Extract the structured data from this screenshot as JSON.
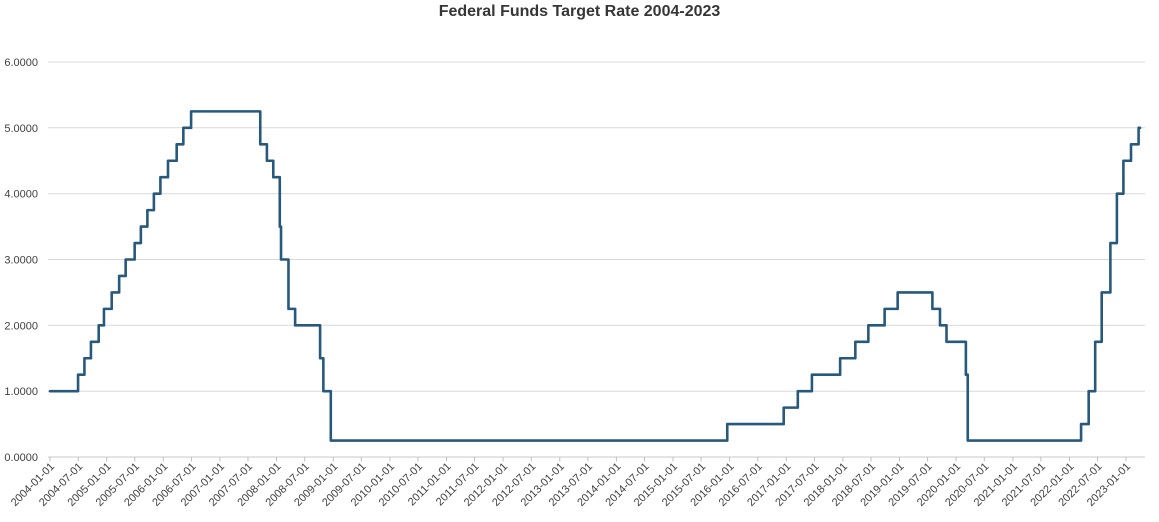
{
  "chart_data": {
    "type": "line",
    "title": "Federal Funds Target Rate 2004-2023",
    "xlabel": "",
    "ylabel": "",
    "ylim": [
      0,
      6
    ],
    "x_range": [
      "2004-01-01",
      "2023-04-01"
    ],
    "grid": "horizontal-only",
    "legend_position": "none",
    "line_color": "#27597C",
    "gridline_color": "#D9D9D9",
    "axis_line_color": "#C8C8C8",
    "tick_mark_color": "#BFBFBF",
    "tick_label_color": "#404040",
    "title_color": "#363636",
    "y_tick_labels": [
      "0.0000",
      "1.0000",
      "2.0000",
      "3.0000",
      "4.0000",
      "5.0000",
      "6.0000"
    ],
    "y_tick_values": [
      0,
      1,
      2,
      3,
      4,
      5,
      6
    ],
    "x_tick_labels": [
      "2004-01-01",
      "2004-07-01",
      "2005-01-01",
      "2005-07-01",
      "2006-01-01",
      "2006-07-01",
      "2007-01-01",
      "2007-07-01",
      "2008-01-01",
      "2008-07-01",
      "2009-01-01",
      "2009-07-01",
      "2010-01-01",
      "2010-07-01",
      "2011-01-01",
      "2011-07-01",
      "2012-01-01",
      "2012-07-01",
      "2013-01-01",
      "2013-07-01",
      "2014-01-01",
      "2014-07-01",
      "2015-01-01",
      "2015-07-01",
      "2016-01-01",
      "2016-07-01",
      "2017-01-01",
      "2017-07-01",
      "2018-01-01",
      "2018-07-01",
      "2019-01-01",
      "2019-07-01",
      "2020-01-01",
      "2020-07-01",
      "2021-01-01",
      "2021-07-01",
      "2022-01-01",
      "2022-07-01",
      "2023-01-01"
    ],
    "series": [
      {
        "name": "Federal Funds Target Rate",
        "step_mode": "post",
        "points": [
          [
            "2004-01-01",
            1.0
          ],
          [
            "2004-06-30",
            1.25
          ],
          [
            "2004-08-10",
            1.5
          ],
          [
            "2004-09-21",
            1.75
          ],
          [
            "2004-11-10",
            2.0
          ],
          [
            "2004-12-14",
            2.25
          ],
          [
            "2005-02-02",
            2.5
          ],
          [
            "2005-03-22",
            2.75
          ],
          [
            "2005-05-03",
            3.0
          ],
          [
            "2005-06-30",
            3.25
          ],
          [
            "2005-08-09",
            3.5
          ],
          [
            "2005-09-20",
            3.75
          ],
          [
            "2005-11-01",
            4.0
          ],
          [
            "2005-12-13",
            4.25
          ],
          [
            "2006-01-31",
            4.5
          ],
          [
            "2006-03-28",
            4.75
          ],
          [
            "2006-05-10",
            5.0
          ],
          [
            "2006-06-29",
            5.25
          ],
          [
            "2007-09-18",
            4.75
          ],
          [
            "2007-10-31",
            4.5
          ],
          [
            "2007-12-11",
            4.25
          ],
          [
            "2008-01-22",
            3.5
          ],
          [
            "2008-01-30",
            3.0
          ],
          [
            "2008-03-18",
            2.25
          ],
          [
            "2008-04-30",
            2.0
          ],
          [
            "2008-10-08",
            1.5
          ],
          [
            "2008-10-29",
            1.0
          ],
          [
            "2008-12-16",
            0.25
          ],
          [
            "2015-12-17",
            0.5
          ],
          [
            "2016-12-15",
            0.75
          ],
          [
            "2017-03-16",
            1.0
          ],
          [
            "2017-06-15",
            1.25
          ],
          [
            "2017-12-14",
            1.5
          ],
          [
            "2018-03-22",
            1.75
          ],
          [
            "2018-06-14",
            2.0
          ],
          [
            "2018-09-27",
            2.25
          ],
          [
            "2018-12-20",
            2.5
          ],
          [
            "2019-08-01",
            2.25
          ],
          [
            "2019-09-19",
            2.0
          ],
          [
            "2019-10-31",
            1.75
          ],
          [
            "2020-03-04",
            1.25
          ],
          [
            "2020-03-16",
            0.25
          ],
          [
            "2022-03-17",
            0.5
          ],
          [
            "2022-05-05",
            1.0
          ],
          [
            "2022-06-16",
            1.75
          ],
          [
            "2022-07-28",
            2.5
          ],
          [
            "2022-09-22",
            3.25
          ],
          [
            "2022-11-03",
            4.0
          ],
          [
            "2022-12-15",
            4.5
          ],
          [
            "2023-02-02",
            4.75
          ],
          [
            "2023-03-23",
            5.0
          ],
          [
            "2023-04-01",
            5.0
          ]
        ]
      }
    ]
  }
}
